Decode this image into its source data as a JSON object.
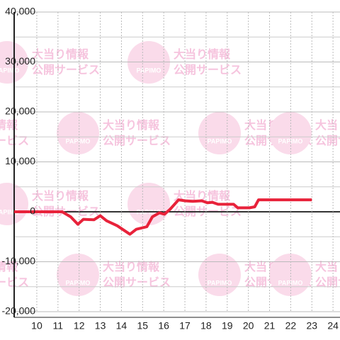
{
  "chart_data": {
    "type": "line",
    "watermark": {
      "logo": "PAPIMO",
      "line1": "大当り情報",
      "line2": "公開サービス"
    },
    "x": [
      8.93,
      11.2,
      11.6,
      11.94,
      12.2,
      12.7,
      13.0,
      13.3,
      13.8,
      14.4,
      14.7,
      15.2,
      15.46,
      15.8,
      16.03,
      16.3,
      16.7,
      17.0,
      17.37,
      17.8,
      18.07,
      18.3,
      18.57,
      19.3,
      19.5,
      20.05,
      20.3,
      20.48,
      23.0
    ],
    "series": [
      {
        "color": "#e8223a",
        "values": [
          0,
          0,
          -1000,
          -2500,
          -1500,
          -1600,
          -800,
          -1800,
          -2800,
          -4500,
          -3500,
          -3000,
          -1000,
          -200,
          -500,
          500,
          2400,
          2200,
          2100,
          2200,
          1800,
          1900,
          1500,
          1500,
          800,
          800,
          1000,
          2400,
          2400
        ]
      }
    ],
    "xlim": [
      8.93,
      24.33
    ],
    "ylim": [
      -20000,
      40000
    ],
    "xticks": [
      10,
      11,
      12,
      13,
      14,
      15,
      16,
      17,
      18,
      19,
      20,
      21,
      22,
      23,
      24
    ],
    "yticks": [
      {
        "value": -20000,
        "label": "-20,000"
      },
      {
        "value": -10000,
        "label": "-10,000"
      },
      0,
      {
        "value": 10000,
        "label": "10,000"
      },
      {
        "value": 20000,
        "label": "20,000"
      },
      {
        "value": 30000,
        "label": "30,000"
      },
      {
        "value": 40000,
        "label": "40,000"
      }
    ],
    "y_minor_ticks": [
      -15000,
      -5000,
      5000,
      15000,
      25000,
      35000
    ],
    "grid": true
  }
}
